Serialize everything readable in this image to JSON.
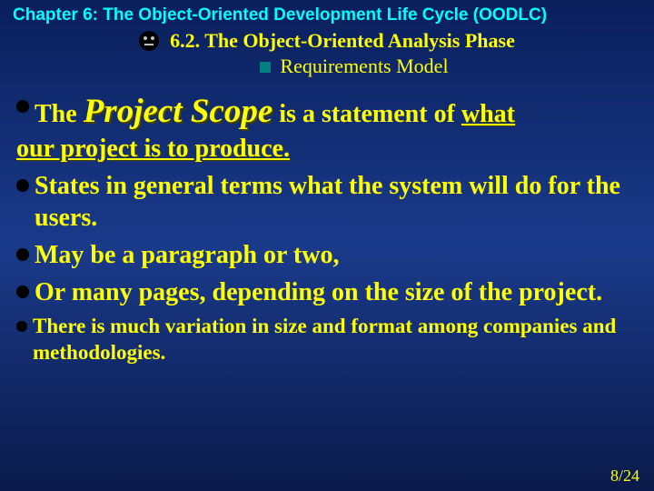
{
  "chapter": "Chapter 6: The Object-Oriented Development Life Cycle (OODLC)",
  "section": "6.2. The Object-Oriented Analysis Phase",
  "subsection": "Requirements Model",
  "b1_pre": "The ",
  "b1_scope": "Project Scope",
  "b1_mid": " is a statement of ",
  "b1_what": "what",
  "b1_cont": "our project is to produce.",
  "b2": "States in general terms what the system will do for the users.",
  "b3": "May be a paragraph or two,",
  "b4": "Or many pages, depending on the size of the project.",
  "b5": "There is much variation in size and format among companies and methodologies.",
  "page": "8/24"
}
